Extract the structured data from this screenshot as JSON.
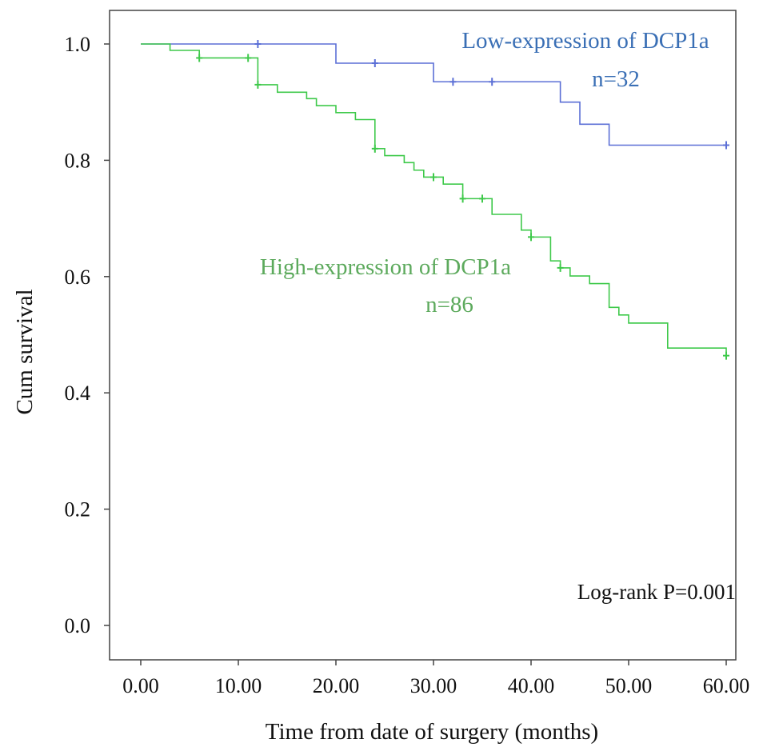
{
  "chart_data": {
    "type": "line",
    "subtype": "kaplan-meier",
    "title": "",
    "xlabel": "Time from date of surgery (months)",
    "ylabel": "Cum  survival",
    "xlim": [
      0,
      60
    ],
    "ylim": [
      0,
      1
    ],
    "xticks": [
      "0.00",
      "10.00",
      "20.00",
      "30.00",
      "40.00",
      "50.00",
      "60.00"
    ],
    "xtick_values": [
      0,
      10,
      20,
      30,
      40,
      50,
      60
    ],
    "yticks": [
      "0.0",
      "0.2",
      "0.4",
      "0.6",
      "0.8",
      "1.0"
    ],
    "ytick_values": [
      0,
      0.2,
      0.4,
      0.6,
      0.8,
      1.0
    ],
    "grid": false,
    "series": [
      {
        "name": "Low-expression of DCP1a",
        "n_label": "n=32",
        "color": "#5b6fd6",
        "label_color": "#3a6fb5",
        "steps": [
          [
            0,
            1.0
          ],
          [
            20,
            0.967
          ],
          [
            30,
            0.935
          ],
          [
            43,
            0.9
          ],
          [
            45,
            0.862
          ],
          [
            48,
            0.826
          ],
          [
            60,
            0.826
          ]
        ],
        "censored": [
          [
            12,
            1.0
          ],
          [
            24,
            0.967
          ],
          [
            32,
            0.935
          ],
          [
            36,
            0.935
          ],
          [
            60,
            0.826
          ]
        ]
      },
      {
        "name": "High-expression of DCP1a",
        "n_label": "n=86",
        "color": "#3ec94a",
        "label_color": "#5daa5d",
        "steps": [
          [
            0,
            1.0
          ],
          [
            3,
            0.989
          ],
          [
            6,
            0.976
          ],
          [
            12,
            0.93
          ],
          [
            14,
            0.917
          ],
          [
            17,
            0.906
          ],
          [
            18,
            0.894
          ],
          [
            20,
            0.882
          ],
          [
            22,
            0.87
          ],
          [
            24,
            0.82
          ],
          [
            25,
            0.808
          ],
          [
            27,
            0.796
          ],
          [
            28,
            0.783
          ],
          [
            29,
            0.771
          ],
          [
            31,
            0.759
          ],
          [
            33,
            0.734
          ],
          [
            36,
            0.707
          ],
          [
            39,
            0.68
          ],
          [
            40,
            0.668
          ],
          [
            42,
            0.627
          ],
          [
            43,
            0.615
          ],
          [
            44,
            0.601
          ],
          [
            46,
            0.588
          ],
          [
            48,
            0.547
          ],
          [
            49,
            0.534
          ],
          [
            50,
            0.52
          ],
          [
            54,
            0.477
          ],
          [
            60,
            0.464
          ]
        ],
        "censored": [
          [
            6,
            0.976
          ],
          [
            11,
            0.976
          ],
          [
            12,
            0.93
          ],
          [
            24,
            0.82
          ],
          [
            30,
            0.771
          ],
          [
            33,
            0.734
          ],
          [
            35,
            0.734
          ],
          [
            40,
            0.668
          ],
          [
            43,
            0.615
          ],
          [
            60,
            0.464
          ]
        ]
      }
    ],
    "annotation": "Log-rank  P=0.001"
  }
}
